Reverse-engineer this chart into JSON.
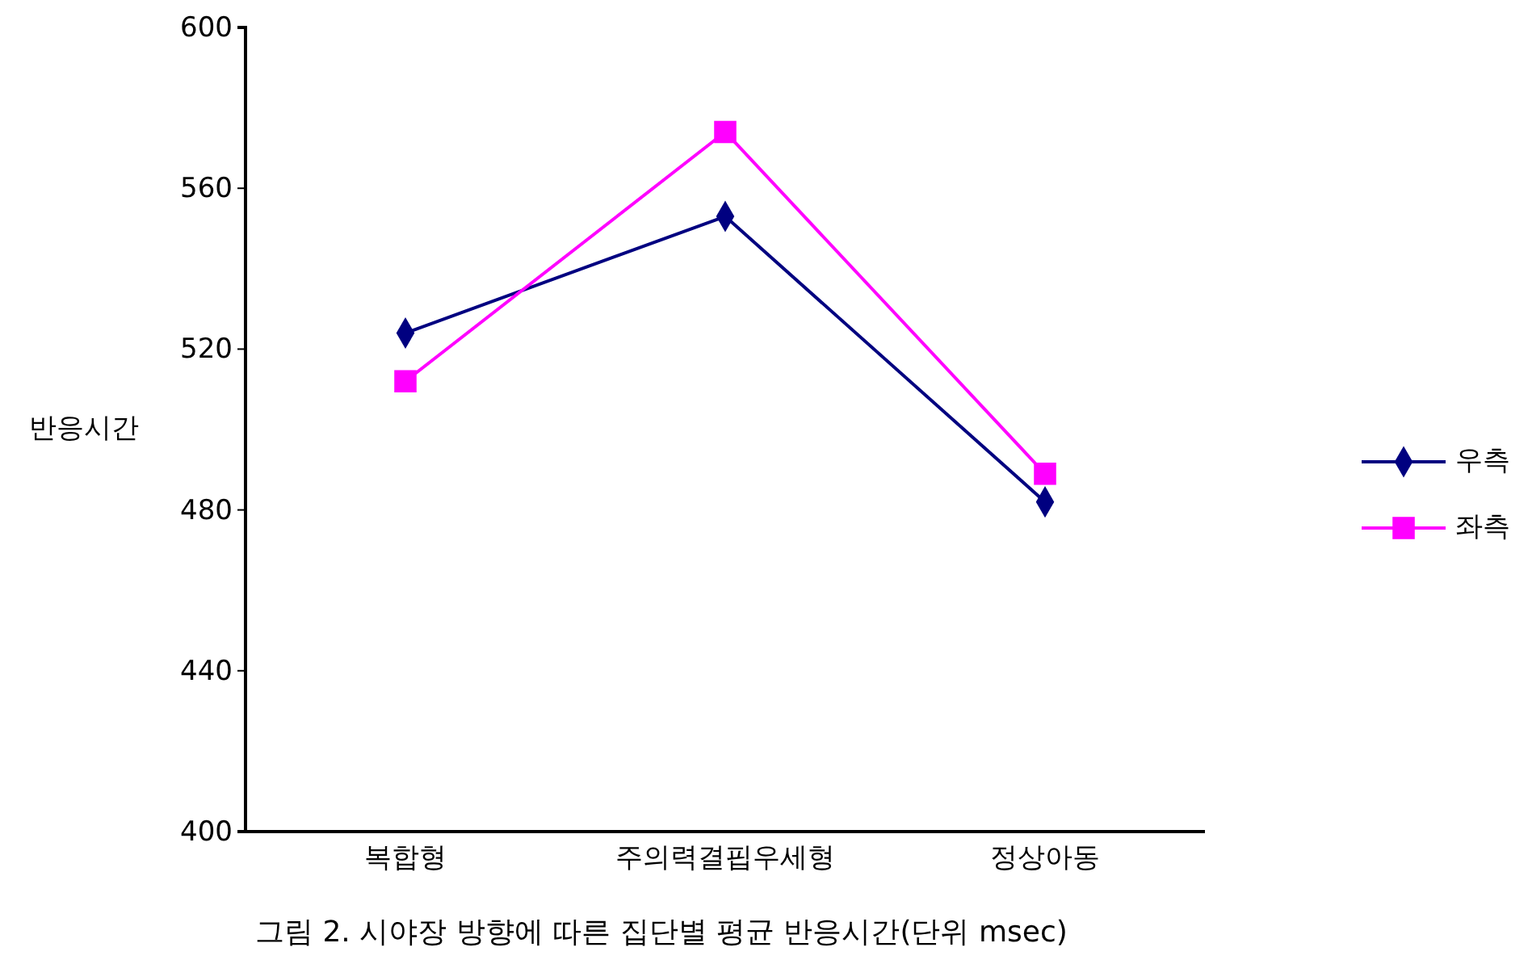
{
  "chart_data": {
    "type": "line",
    "ylabel": "반응시간",
    "categories": [
      "복합형",
      "주의력결핍우세형",
      "정상아동"
    ],
    "ylim": [
      400,
      600
    ],
    "yticks": [
      400,
      440,
      480,
      520,
      560,
      600
    ],
    "grid": false,
    "legend": "right",
    "series": [
      {
        "name": "우측",
        "color": "#000080",
        "marker": "diamond",
        "values": [
          524,
          553,
          482
        ]
      },
      {
        "name": "좌측",
        "color": "#ff00ff",
        "marker": "square",
        "values": [
          512,
          574,
          489
        ]
      }
    ],
    "annotations": [
      "그림 2. 시야장 방향에 따른 집단별 평균 반응시간(단위 msec)"
    ]
  }
}
